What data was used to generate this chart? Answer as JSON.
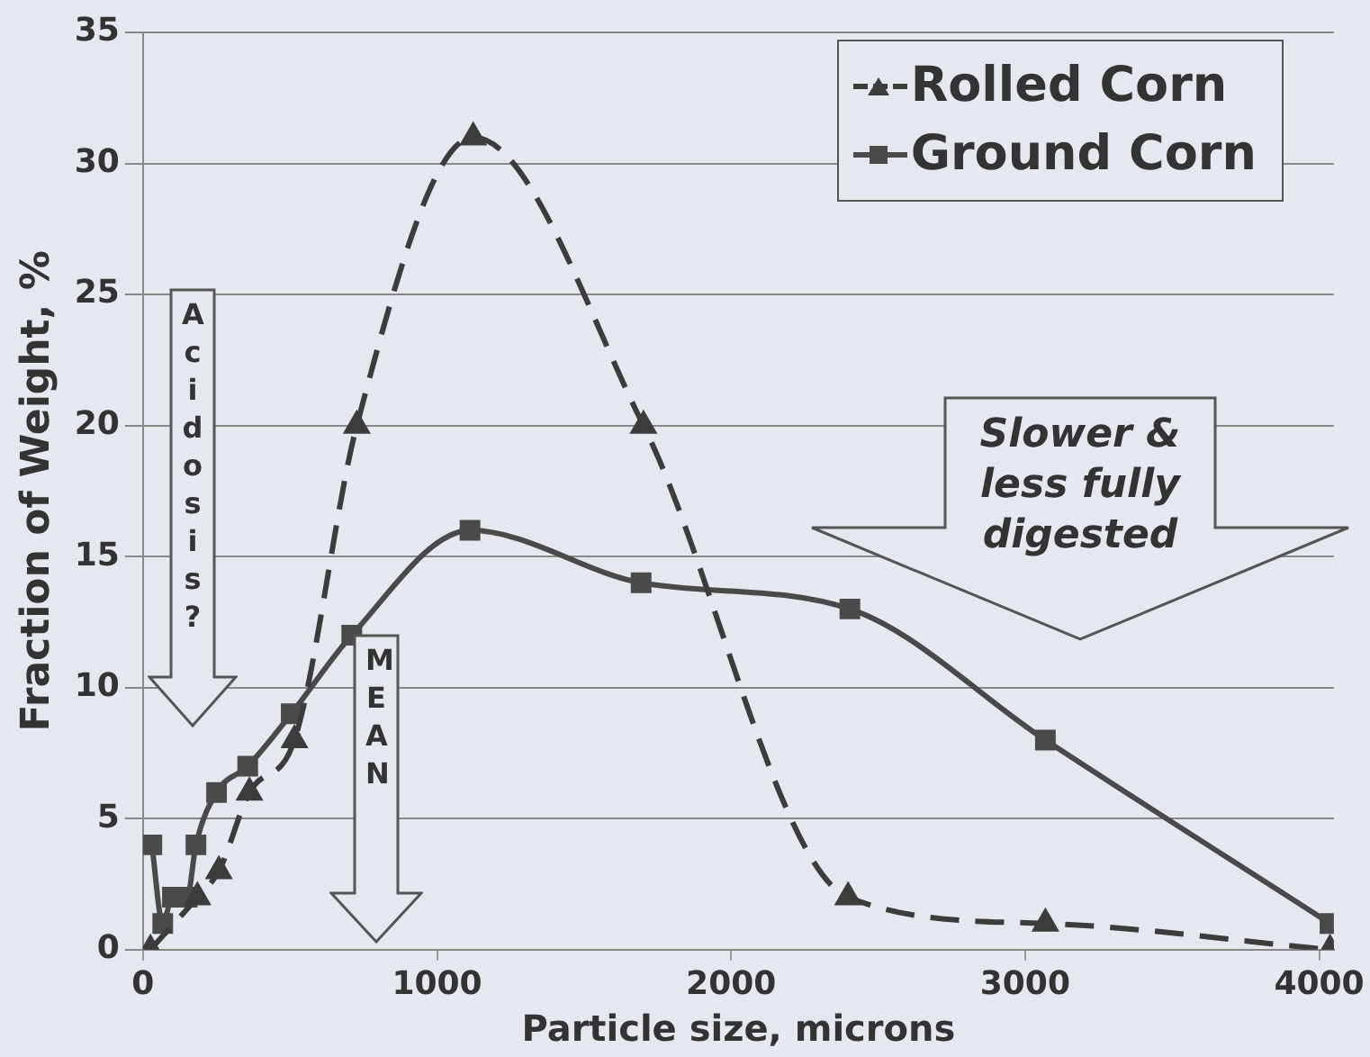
{
  "chart_data": {
    "type": "line",
    "xlabel": "Particle size, microns",
    "ylabel": "Fraction of Weight, %",
    "xlim": [
      0,
      4050
    ],
    "xticks": [
      0,
      1000,
      2000,
      3000,
      4000
    ],
    "ylim": [
      0,
      35
    ],
    "yticks": [
      0,
      5,
      10,
      15,
      20,
      25,
      30,
      35
    ],
    "grid": "y",
    "legend": "top right",
    "series": [
      {
        "name": "Rolled Corn",
        "color": "#3c3c3c",
        "marker": "triangle",
        "line_style": "dashed",
        "x": [
          25,
          185,
          258,
          362,
          515,
          727,
          1123,
          1702,
          2398,
          3069,
          4037
        ],
        "values": [
          0,
          2,
          3,
          6,
          8,
          20,
          31,
          20,
          2,
          1,
          0
        ]
      },
      {
        "name": "Ground Corn",
        "color": "#4a4a4a",
        "marker": "square",
        "line_style": "solid",
        "x": [
          30,
          67,
          100,
          150,
          180,
          250,
          356,
          504,
          710,
          1112,
          1694,
          2404,
          3069,
          4037
        ],
        "values": [
          4,
          1,
          2,
          2,
          4,
          6,
          7,
          9,
          12,
          16,
          14,
          13,
          8,
          1
        ]
      }
    ],
    "annotations": [
      "Acidosis?",
      "MEAN",
      "Slower & less fully digested"
    ]
  }
}
